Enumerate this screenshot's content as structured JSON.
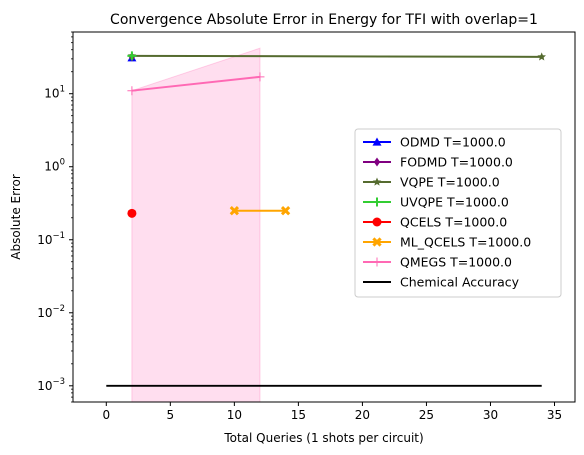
{
  "chart_data": {
    "type": "line",
    "title": "Convergence Absolute Error in Energy for TFI with overlap=1",
    "xlabel": "Total Queries (1 shots per circuit)",
    "ylabel": "Absolute Error",
    "xlim": [
      -2.6,
      36.6
    ],
    "ylim": [
      0.0006,
      70
    ],
    "yscale": "log",
    "xticks": [
      0,
      5,
      10,
      15,
      20,
      25,
      30,
      35
    ],
    "yticks": [
      {
        "value": 0.001,
        "base": "10",
        "exp": "−3"
      },
      {
        "value": 0.01,
        "base": "10",
        "exp": "−2"
      },
      {
        "value": 0.1,
        "base": "10",
        "exp": "−1"
      },
      {
        "value": 1,
        "base": "10",
        "exp": "0"
      },
      {
        "value": 10,
        "base": "10",
        "exp": "1"
      }
    ],
    "legend_position": "center-right",
    "series": [
      {
        "name": "ODMD T=1000.0",
        "color": "#0000ff",
        "marker": "triangle",
        "x": [
          2
        ],
        "y": [
          31
        ]
      },
      {
        "name": "FODMD T=1000.0",
        "color": "#800080",
        "marker": "diamond",
        "x": [
          2
        ],
        "y": [
          32
        ]
      },
      {
        "name": "VQPE T=1000.0",
        "color": "#556b2f",
        "marker": "star",
        "x": [
          2,
          34
        ],
        "y": [
          33,
          32
        ]
      },
      {
        "name": "UVQPE T=1000.0",
        "color": "#32cd32",
        "marker": "plus",
        "x": [
          2
        ],
        "y": [
          33
        ]
      },
      {
        "name": "QCELS T=1000.0",
        "color": "#ff0000",
        "marker": "circle",
        "x": [
          2
        ],
        "y": [
          0.23
        ]
      },
      {
        "name": "ML_QCELS T=1000.0",
        "color": "#ffa500",
        "marker": "x",
        "x": [
          10,
          14
        ],
        "y": [
          0.25,
          0.25
        ]
      },
      {
        "name": "QMEGS T=1000.0",
        "color": "#ff69b4",
        "marker": "thin",
        "x": [
          2,
          12
        ],
        "y": [
          11,
          17
        ],
        "band_low": [
          0.0006,
          0.0006
        ],
        "band_high": [
          11,
          42
        ]
      },
      {
        "name": "Chemical Accuracy",
        "color": "#000000",
        "marker": "none",
        "x": [
          0,
          34
        ],
        "y": [
          0.001,
          0.001
        ]
      }
    ]
  }
}
